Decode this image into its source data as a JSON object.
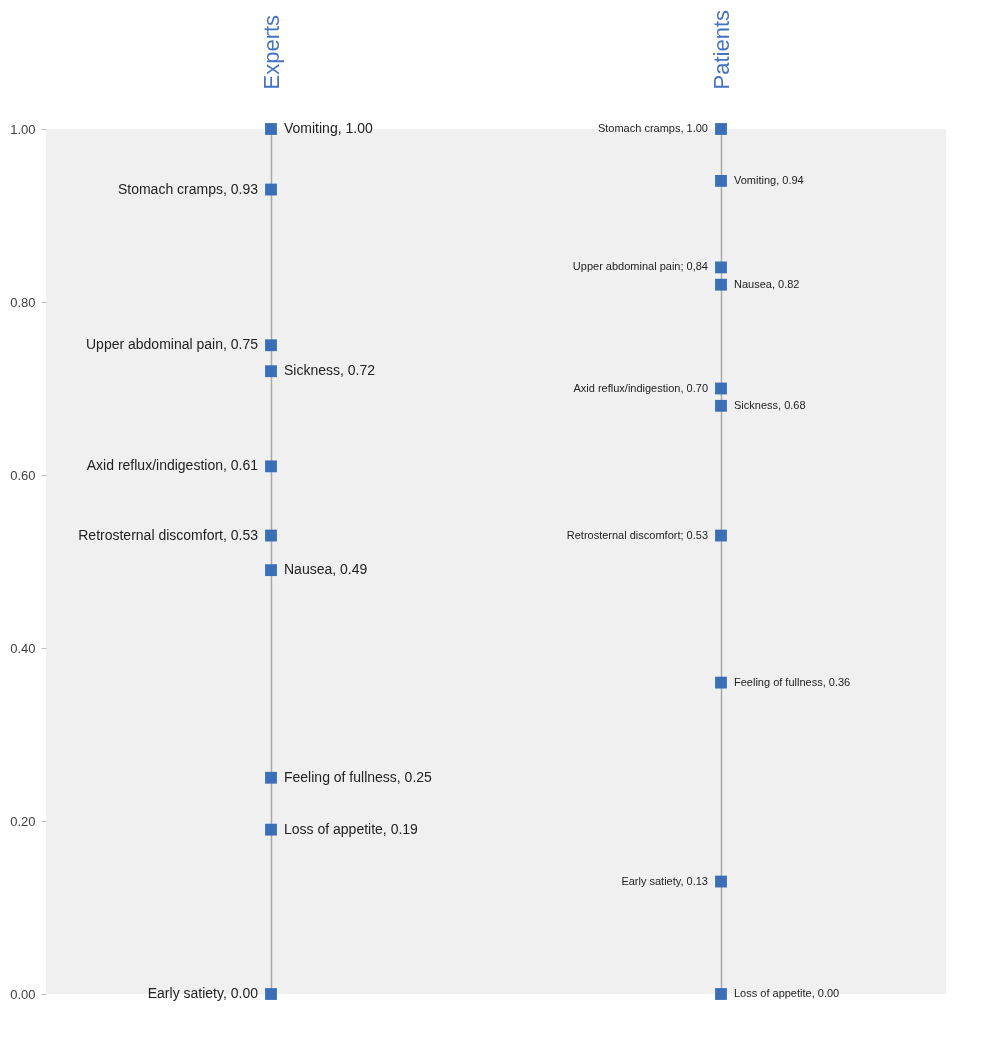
{
  "chart_data": {
    "type": "scatter",
    "categories": [
      "Experts",
      "Patients"
    ],
    "marker": "square",
    "grid": "x",
    "ylim": [
      0,
      1
    ],
    "yticks": [
      {
        "value": 0,
        "label": "0.00"
      },
      {
        "value": 0.2,
        "label": "0.20"
      },
      {
        "value": 0.4,
        "label": "0.40"
      },
      {
        "value": 0.6,
        "label": "0.60"
      },
      {
        "value": 0.8,
        "label": "0.80"
      },
      {
        "value": 1,
        "label": "1.00"
      }
    ],
    "series": [
      {
        "color": "#3a6fb8",
        "x": [
          "Experts",
          "Experts",
          "Experts",
          "Experts",
          "Experts",
          "Experts",
          "Experts",
          "Experts",
          "Experts",
          "Experts",
          "Patients",
          "Patients",
          "Patients",
          "Patients",
          "Patients",
          "Patients",
          "Patients",
          "Patients",
          "Patients",
          "Patients"
        ],
        "values": [
          1.0,
          0.93,
          0.75,
          0.72,
          0.61,
          0.53,
          0.49,
          0.25,
          0.19,
          0.0,
          1.0,
          0.94,
          0.84,
          0.82,
          0.7,
          0.68,
          0.53,
          0.36,
          0.13,
          0.0
        ],
        "value_labels": [
          "Vomiting, 1.00",
          "Stomach cramps, 0.93",
          "Upper abdominal pain, 0.75",
          "Sickness, 0.72",
          "Axid reflux/indigestion, 0.61",
          "Retrosternal discomfort, 0.53",
          "Nausea, 0.49",
          "Feeling of fullness, 0.25",
          "Loss of appetite, 0.19",
          "Early satiety, 0.00",
          "Stomach cramps, 1.00",
          "Vomiting, 0.94",
          "Upper abdominal pain; 0,84",
          "Nausea, 0.82",
          "Axid reflux/indigestion, 0.70",
          "Sickness, 0.68",
          "Retrosternal discomfort; 0.53",
          "Feeling of fullness, 0.36",
          "Early satiety, 0.13",
          "Loss of appetite, 0.00"
        ]
      }
    ]
  }
}
